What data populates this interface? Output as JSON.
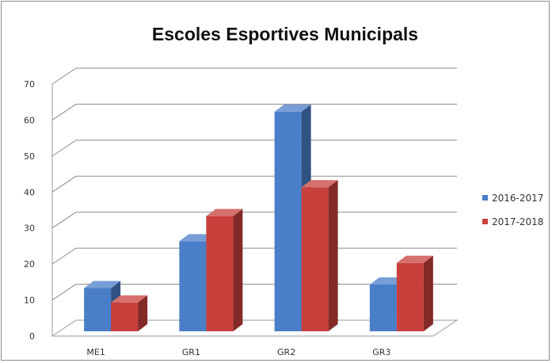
{
  "chart_data": {
    "type": "bar",
    "title": "Escoles Esportives Municipals",
    "categories": [
      "ME1",
      "GR1",
      "GR2",
      "GR3"
    ],
    "series": [
      {
        "name": "2016-2017",
        "values": [
          12,
          25,
          61,
          13
        ],
        "color": "#4a7ec8"
      },
      {
        "name": "2017-2018",
        "values": [
          8,
          32,
          40,
          19
        ],
        "color": "#c8403c"
      }
    ],
    "yticks": [
      "0",
      "10",
      "20",
      "30",
      "40",
      "50",
      "60",
      "70"
    ],
    "ylim": [
      0,
      70
    ],
    "grid": true,
    "legend": "right",
    "style": "3d-clustered-column"
  }
}
